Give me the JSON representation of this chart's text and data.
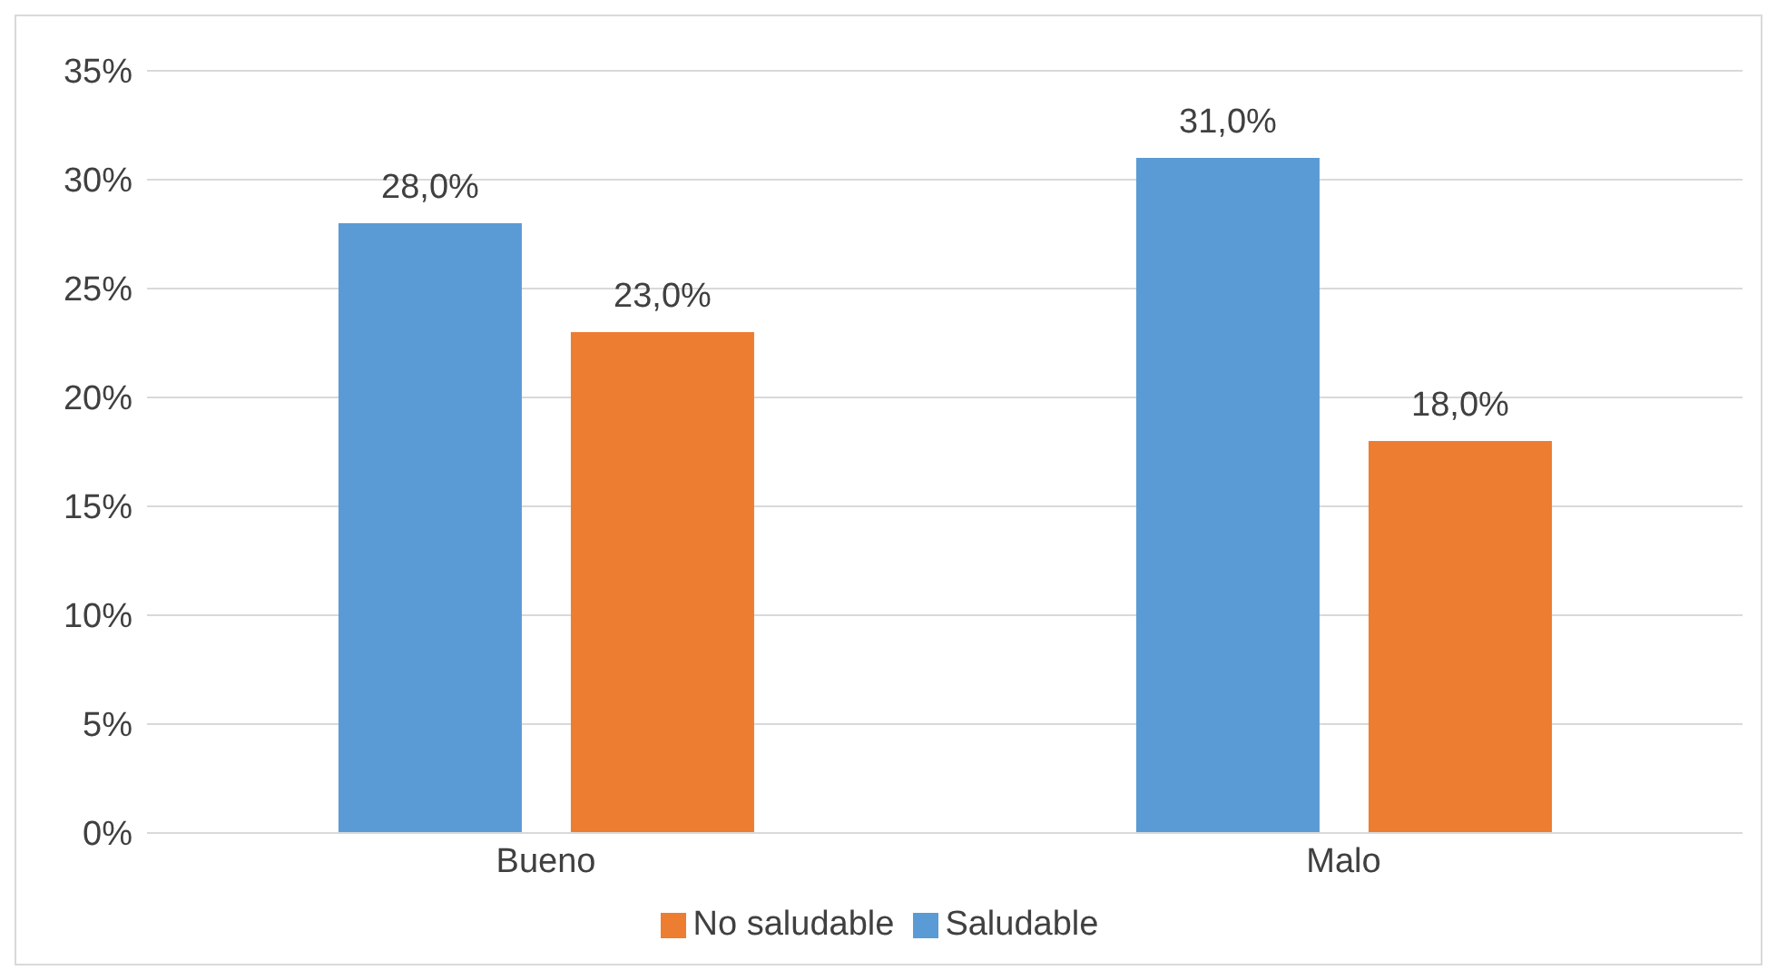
{
  "chart_data": {
    "type": "bar",
    "categories": [
      "Bueno",
      "Malo"
    ],
    "series": [
      {
        "name": "Saludable",
        "color": "#5b9bd5",
        "values": [
          28,
          31
        ],
        "value_labels": [
          "28,0%",
          "31,0%"
        ]
      },
      {
        "name": "No saludable",
        "color": "#ed7d31",
        "values": [
          23,
          18
        ],
        "value_labels": [
          "23,0%",
          "18,0%"
        ]
      }
    ],
    "ylim": [
      0,
      35
    ],
    "yticks": [
      {
        "value": 0,
        "label": "0%"
      },
      {
        "value": 5,
        "label": "5%"
      },
      {
        "value": 10,
        "label": "10%"
      },
      {
        "value": 15,
        "label": "15%"
      },
      {
        "value": 20,
        "label": "20%"
      },
      {
        "value": 25,
        "label": "25%"
      },
      {
        "value": 30,
        "label": "30%"
      },
      {
        "value": 35,
        "label": "35%"
      }
    ],
    "grid": "y",
    "legend": "bottom"
  }
}
